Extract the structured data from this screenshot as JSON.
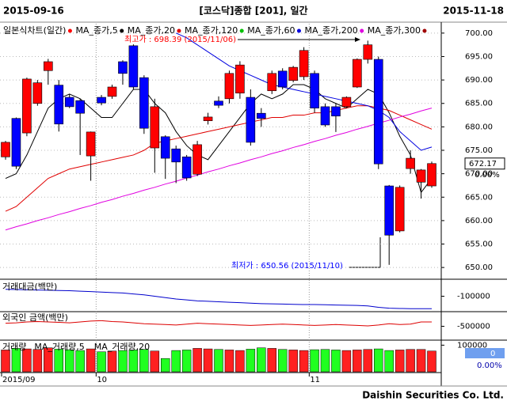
{
  "chart_data": {
    "type": "candlestick",
    "header_left": "2015-09-16",
    "title": "[코스닥]종합 [201], 일간",
    "header_right": "2015-11-18",
    "chart_label": "일본식차트(일간)",
    "chart_label_color": "#ff0000",
    "up_color": "#ff0000",
    "down_color": "#0000ff",
    "categories": [
      "2015/09",
      null,
      null,
      null,
      null,
      null,
      null,
      null,
      null,
      "10",
      null,
      null,
      null,
      null,
      null,
      null,
      null,
      null,
      null,
      null,
      null,
      null,
      null,
      null,
      null,
      null,
      null,
      null,
      null,
      "11",
      null,
      null,
      null,
      null,
      null,
      null,
      null,
      null,
      null,
      null,
      null
    ],
    "open": [
      673.6,
      681.8,
      678.7,
      685,
      692,
      688.9,
      686.3,
      685.6,
      673.8,
      686.3,
      686.5,
      693.9,
      697.3,
      690.5,
      675.5,
      677.9,
      675.3,
      673.6,
      669.9,
      681.3,
      685.5,
      686,
      687.2,
      686.3,
      682.9,
      687.7,
      691.9,
      689.9,
      690.7,
      691.4,
      684.3,
      684.3,
      684.3,
      688.5,
      694.4,
      694.4,
      667.4,
      657.8,
      671.1,
      668.2,
      667.4
    ],
    "high": [
      677,
      682,
      690.5,
      690,
      694.5,
      690,
      687,
      686,
      679,
      686.8,
      689,
      694.2,
      697.6,
      691,
      686,
      678.2,
      676,
      674,
      677,
      683,
      686.5,
      692,
      694,
      688,
      684,
      692,
      692.5,
      693,
      697,
      692,
      685,
      685,
      686.5,
      694.6,
      698.39,
      695,
      667.6,
      667.5,
      675,
      671,
      672.6
    ],
    "low": [
      673,
      671,
      678,
      684.5,
      689,
      679,
      684,
      674,
      668.5,
      684.6,
      686,
      689,
      688,
      678.5,
      670.2,
      668.9,
      668,
      668.5,
      669.5,
      680.5,
      684,
      685,
      686,
      676,
      680,
      687,
      688,
      689.5,
      690,
      683,
      680,
      678.9,
      684,
      688.3,
      693.5,
      671,
      650.56,
      657.5,
      670,
      664.7,
      667
    ],
    "close": [
      676.7,
      671.6,
      690.2,
      689.4,
      693.9,
      680.6,
      684.3,
      682.9,
      678.9,
      685.1,
      688.5,
      691.4,
      688.5,
      679.7,
      684.3,
      673.3,
      672.5,
      669.1,
      676.2,
      682.1,
      684.6,
      691.4,
      693.2,
      676.7,
      681.8,
      691.4,
      688.5,
      692.7,
      696.3,
      684,
      680.4,
      682.3,
      686.3,
      694.4,
      697.5,
      672.1,
      656.9,
      667.1,
      673.3,
      670.8,
      672.17
    ],
    "ylim": [
      648,
      702
    ],
    "yticks": [
      {
        "value": 650,
        "label": "650.00"
      },
      {
        "value": 655,
        "label": "655.00"
      },
      {
        "value": 660,
        "label": "660.00"
      },
      {
        "value": 665,
        "label": "665.00"
      },
      {
        "value": 670,
        "label": "670.00"
      },
      {
        "value": 675,
        "label": "675.00"
      },
      {
        "value": 680,
        "label": "680.00"
      },
      {
        "value": 685,
        "label": "685.00"
      },
      {
        "value": 690,
        "label": "690.00"
      },
      {
        "value": 695,
        "label": "695.00"
      },
      {
        "value": 700,
        "label": "700.00"
      }
    ],
    "grid": true,
    "series": [
      {
        "name": "MA_종가,5",
        "color": "#000000",
        "values": [
          669,
          670,
          674,
          679,
          684,
          686,
          687,
          686,
          684,
          682,
          682,
          685,
          688,
          688,
          685,
          683,
          679,
          676,
          674,
          673,
          676,
          679,
          682,
          685,
          687,
          686,
          687,
          689,
          689,
          688,
          686,
          685,
          684,
          686,
          688,
          687,
          683,
          678,
          674,
          666,
          669
        ]
      },
      {
        "name": "MA_종가,20",
        "color": "#e00000",
        "values": [
          662,
          663,
          665,
          667,
          669,
          670,
          671,
          671.5,
          672,
          672.5,
          673,
          673.5,
          674,
          675,
          676.5,
          677,
          677.5,
          678,
          678.5,
          679,
          679.5,
          680,
          680.5,
          681,
          681.5,
          682,
          682,
          682.5,
          682.5,
          683,
          683,
          683.5,
          684,
          684.5,
          684.5,
          684,
          683.5,
          682.5,
          681.5,
          680.5,
          679.5
        ]
      },
      {
        "name": "MA_종가,120",
        "color": "#00c000"
      },
      {
        "name": "MA_종가,60",
        "color": "#0000e0",
        "values": [
          null,
          null,
          null,
          null,
          null,
          null,
          null,
          null,
          null,
          null,
          null,
          null,
          null,
          null,
          null,
          null,
          700,
          699,
          697.5,
          696,
          694.5,
          693,
          692,
          691,
          690,
          689,
          688.5,
          688,
          687.5,
          687,
          686.5,
          686,
          685.5,
          685,
          684.5,
          683.5,
          682,
          679,
          677,
          675,
          675.7
        ]
      },
      {
        "name": "MA_종가,200",
        "color": "#e000e0",
        "values": [
          658,
          658.7,
          659.3,
          660,
          660.6,
          661.3,
          661.9,
          662.6,
          663.2,
          663.9,
          664.5,
          665.2,
          665.8,
          666.5,
          667.1,
          667.8,
          668.4,
          669.1,
          669.7,
          670.4,
          671,
          671.7,
          672.3,
          673,
          673.6,
          674.3,
          674.9,
          675.6,
          676.2,
          676.9,
          677.5,
          678.2,
          678.8,
          679.5,
          680.1,
          680.8,
          681.4,
          682.1,
          682.7,
          683.4,
          684
        ]
      },
      {
        "name": "MA_종가,300",
        "color": "#a00000"
      }
    ],
    "annotations": [
      {
        "text": "최고가 : 698.39 (2015/11/06)",
        "color": "#ff0000"
      },
      {
        "text": "최저가 : 650.56 (2015/11/10)",
        "color": "#0000ff"
      }
    ],
    "last_price": 672.17,
    "change_label": "0.00%",
    "footer": "Daishin Securities Co. Ltd.",
    "panels": [
      {
        "type": "line",
        "label": "거래대금(백만)",
        "color": "#0000cc",
        "ylim": [
          -130000,
          -70000
        ],
        "yticks": [
          -100000
        ],
        "values": [
          -85000,
          -85500,
          -86000,
          -86500,
          -87000,
          -87500,
          -88000,
          -89000,
          -90000,
          -91000,
          -92000,
          -93000,
          -95000,
          -97000,
          -100000,
          -103000,
          -106000,
          -108000,
          -110000,
          -111000,
          -112000,
          -113000,
          -114000,
          -115000,
          -116000,
          -116500,
          -117000,
          -117500,
          -118000,
          -118000,
          -118500,
          -119000,
          -119500,
          -120000,
          -121000,
          -124000,
          -126000,
          -126500,
          -127000,
          -127000,
          -127000
        ]
      },
      {
        "type": "line",
        "label": "외국인 금액(백만)",
        "color": "#dd0000",
        "ylim": [
          -800000,
          -200000
        ],
        "yticks": [
          -500000
        ],
        "values": [
          -430000,
          -420000,
          -400000,
          -390000,
          -400000,
          -410000,
          -420000,
          -400000,
          -380000,
          -370000,
          -390000,
          -400000,
          -420000,
          -440000,
          -450000,
          -460000,
          -470000,
          -450000,
          -430000,
          -440000,
          -450000,
          -460000,
          -470000,
          -480000,
          -470000,
          -460000,
          -450000,
          -460000,
          -470000,
          -480000,
          -470000,
          -460000,
          -470000,
          -480000,
          -490000,
          -470000,
          -440000,
          -460000,
          -450000,
          -400000,
          -400000
        ]
      },
      {
        "type": "bar",
        "label": "거래량",
        "legend": [
          "MA_거래량,5",
          "MA_거래량,20"
        ],
        "up_color": "#ff2020",
        "down_color": "#20ff20",
        "ylim": [
          0,
          110000
        ],
        "yticks": [
          100000
        ],
        "box_value": 0,
        "box_label": "0.00%",
        "values": [
          82000,
          88000,
          86000,
          84000,
          90000,
          85000,
          83000,
          80000,
          86000,
          75000,
          78000,
          80000,
          82000,
          84000,
          78000,
          50000,
          80000,
          82000,
          88000,
          86000,
          84000,
          82000,
          80000,
          85000,
          90000,
          88000,
          84000,
          82000,
          80000,
          83000,
          84000,
          82000,
          80000,
          82000,
          84000,
          86000,
          80000,
          82000,
          84000,
          84000,
          78000
        ]
      }
    ]
  }
}
